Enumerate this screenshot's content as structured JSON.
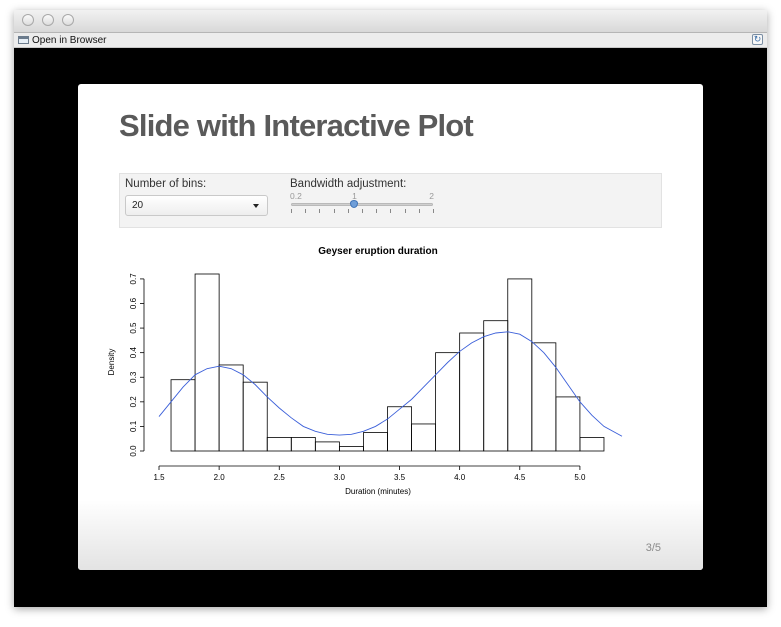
{
  "window": {
    "toolbar": {
      "open_in_browser_label": "Open in Browser"
    },
    "icons": {
      "open_in_browser": "browser-window-icon",
      "refresh": "refresh-icon"
    }
  },
  "slide": {
    "title": "Slide with Interactive Plot",
    "page_number": "3/5",
    "controls": {
      "bins_label": "Number of bins:",
      "bins_selected": "20",
      "bandwidth_label": "Bandwidth adjustment:",
      "bandwidth_min": "0.2",
      "bandwidth_max": "2",
      "bandwidth_value": "1",
      "bandwidth_value_num": 1,
      "bandwidth_range": [
        0.2,
        2
      ]
    }
  },
  "chart_data": {
    "type": "bar",
    "title": "Geyser eruption duration",
    "xlabel": "Duration (minutes)",
    "ylabel": "Density",
    "xlim": [
      1.5,
      5.3
    ],
    "ylim": [
      0,
      0.72
    ],
    "x_ticks": [
      "1.5",
      "2.0",
      "2.5",
      "3.0",
      "3.5",
      "4.0",
      "4.5",
      "5.0"
    ],
    "y_ticks": [
      "0.0",
      "0.1",
      "0.2",
      "0.3",
      "0.4",
      "0.5",
      "0.6",
      "0.7"
    ],
    "grid": false,
    "bins": [
      {
        "x0": 1.6,
        "x1": 1.8,
        "value": 0.29
      },
      {
        "x0": 1.8,
        "x1": 2.0,
        "value": 0.72
      },
      {
        "x0": 2.0,
        "x1": 2.2,
        "value": 0.35
      },
      {
        "x0": 2.2,
        "x1": 2.4,
        "value": 0.28
      },
      {
        "x0": 2.4,
        "x1": 2.6,
        "value": 0.055
      },
      {
        "x0": 2.6,
        "x1": 2.8,
        "value": 0.055
      },
      {
        "x0": 2.8,
        "x1": 3.0,
        "value": 0.037
      },
      {
        "x0": 3.0,
        "x1": 3.2,
        "value": 0.018
      },
      {
        "x0": 3.2,
        "x1": 3.4,
        "value": 0.075
      },
      {
        "x0": 3.4,
        "x1": 3.6,
        "value": 0.18
      },
      {
        "x0": 3.6,
        "x1": 3.8,
        "value": 0.11
      },
      {
        "x0": 3.8,
        "x1": 4.0,
        "value": 0.4
      },
      {
        "x0": 4.0,
        "x1": 4.2,
        "value": 0.48
      },
      {
        "x0": 4.2,
        "x1": 4.4,
        "value": 0.53
      },
      {
        "x0": 4.4,
        "x1": 4.6,
        "value": 0.7
      },
      {
        "x0": 4.6,
        "x1": 4.8,
        "value": 0.44
      },
      {
        "x0": 4.8,
        "x1": 5.0,
        "value": 0.22
      },
      {
        "x0": 5.0,
        "x1": 5.2,
        "value": 0.055
      }
    ],
    "density_curve": {
      "color": "#3b5fd9",
      "x": [
        1.5,
        1.6,
        1.7,
        1.8,
        1.9,
        2.0,
        2.1,
        2.2,
        2.3,
        2.4,
        2.5,
        2.6,
        2.7,
        2.8,
        2.9,
        3.0,
        3.1,
        3.2,
        3.3,
        3.4,
        3.5,
        3.6,
        3.7,
        3.8,
        3.9,
        4.0,
        4.1,
        4.2,
        4.3,
        4.4,
        4.5,
        4.6,
        4.7,
        4.8,
        4.9,
        5.0,
        5.1,
        5.2,
        5.35
      ],
      "y": [
        0.14,
        0.2,
        0.26,
        0.31,
        0.335,
        0.345,
        0.335,
        0.31,
        0.27,
        0.22,
        0.175,
        0.135,
        0.1,
        0.08,
        0.068,
        0.065,
        0.068,
        0.08,
        0.1,
        0.13,
        0.17,
        0.21,
        0.26,
        0.31,
        0.36,
        0.405,
        0.44,
        0.465,
        0.48,
        0.485,
        0.475,
        0.445,
        0.4,
        0.34,
        0.27,
        0.2,
        0.145,
        0.1,
        0.06
      ]
    }
  }
}
